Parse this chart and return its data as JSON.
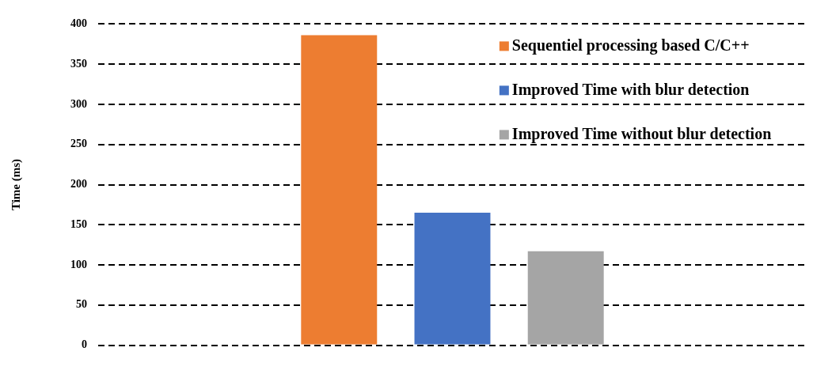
{
  "chart_data": {
    "type": "bar",
    "ylabel": "Time (ms)",
    "categories": [
      null
    ],
    "series": [
      {
        "name": "Sequentiel processing based C/C++",
        "color": "#ed7d31",
        "values": [
          386
        ]
      },
      {
        "name": "Improved Time with blur detection",
        "color": "#4472c4",
        "values": [
          165
        ]
      },
      {
        "name": "Improved Time without blur detection",
        "color": "#a5a5a5",
        "values": [
          117
        ]
      }
    ],
    "ylim": [
      0,
      400
    ],
    "yticks": [
      0,
      50,
      100,
      150,
      200,
      250,
      300,
      350,
      400
    ],
    "grid": "y",
    "legend": "top right"
  }
}
